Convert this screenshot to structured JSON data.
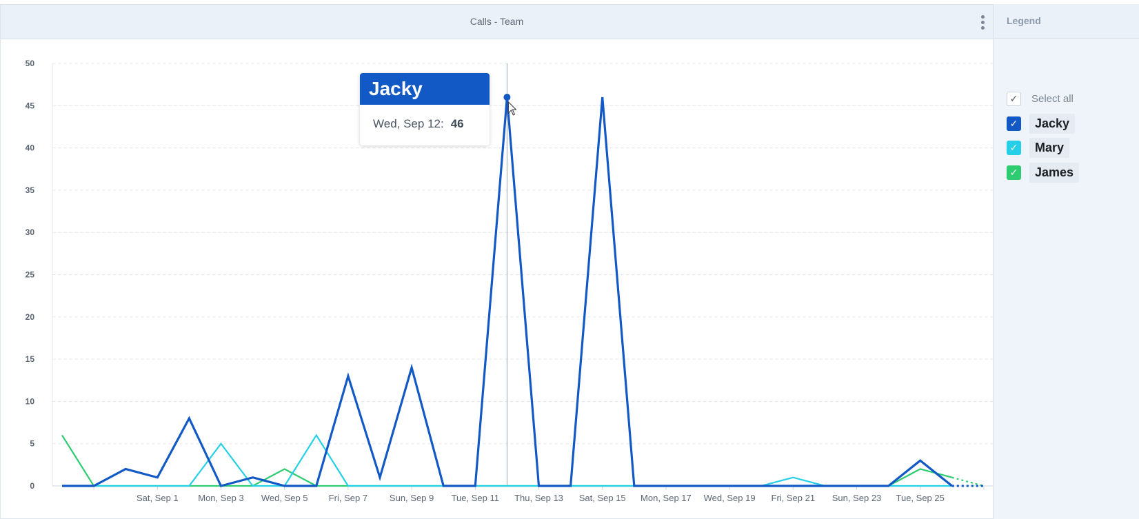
{
  "panel": {
    "title": "Calls - Team"
  },
  "legend": {
    "title": "Legend",
    "select_all": "Select all",
    "items": [
      {
        "name": "Jacky",
        "color": "#1259c5"
      },
      {
        "name": "Mary",
        "color": "#26cfe8"
      },
      {
        "name": "James",
        "color": "#2ecc71"
      }
    ]
  },
  "tooltip": {
    "series": "Jacky",
    "date": "Wed, Sep 12:",
    "value": "46"
  },
  "chart_data": {
    "type": "line",
    "title": "Calls - Team",
    "ylim": [
      0,
      50
    ],
    "yticks": [
      0,
      5,
      10,
      15,
      20,
      25,
      30,
      35,
      40,
      45,
      50
    ],
    "grid": true,
    "legend_position": "right",
    "x": [
      "Aug 29",
      "Aug 30",
      "Aug 31",
      "Sep 1",
      "Sep 2",
      "Sep 3",
      "Sep 4",
      "Sep 5",
      "Sep 6",
      "Sep 7",
      "Sep 8",
      "Sep 9",
      "Sep 10",
      "Sep 11",
      "Sep 12",
      "Sep 13",
      "Sep 14",
      "Sep 15",
      "Sep 16",
      "Sep 17",
      "Sep 18",
      "Sep 19",
      "Sep 20",
      "Sep 21",
      "Sep 22",
      "Sep 23",
      "Sep 24",
      "Sep 25",
      "Sep 26",
      "Sep 27"
    ],
    "xtick_labels": [
      {
        "date": "Sep 1",
        "label": "Sat, Sep 1"
      },
      {
        "date": "Sep 3",
        "label": "Mon, Sep 3"
      },
      {
        "date": "Sep 5",
        "label": "Wed, Sep 5"
      },
      {
        "date": "Sep 7",
        "label": "Fri, Sep 7"
      },
      {
        "date": "Sep 9",
        "label": "Sun, Sep 9"
      },
      {
        "date": "Sep 11",
        "label": "Tue, Sep 11"
      },
      {
        "date": "Sep 13",
        "label": "Thu, Sep 13"
      },
      {
        "date": "Sep 15",
        "label": "Sat, Sep 15"
      },
      {
        "date": "Sep 17",
        "label": "Mon, Sep 17"
      },
      {
        "date": "Sep 19",
        "label": "Wed, Sep 19"
      },
      {
        "date": "Sep 21",
        "label": "Fri, Sep 21"
      },
      {
        "date": "Sep 23",
        "label": "Sun, Sep 23"
      },
      {
        "date": "Sep 25",
        "label": "Tue, Sep 25"
      }
    ],
    "series": [
      {
        "name": "Jacky",
        "color": "#1259c5",
        "values": [
          0,
          0,
          2,
          1,
          8,
          0,
          1,
          0,
          0,
          13,
          1,
          14,
          0,
          0,
          46,
          0,
          0,
          46,
          0,
          0,
          0,
          0,
          0,
          0,
          0,
          0,
          0,
          3,
          0,
          0
        ]
      },
      {
        "name": "Mary",
        "color": "#26cfe8",
        "values": [
          0,
          0,
          0,
          0,
          0,
          5,
          0,
          0,
          6,
          0,
          0,
          0,
          0,
          0,
          0,
          0,
          0,
          0,
          0,
          0,
          0,
          0,
          0,
          1,
          0,
          0,
          0,
          0,
          0,
          0
        ]
      },
      {
        "name": "James",
        "color": "#2ecc71",
        "values": [
          6,
          0,
          0,
          0,
          0,
          0,
          0,
          2,
          0,
          0,
          0,
          0,
          0,
          0,
          0,
          0,
          0,
          0,
          0,
          0,
          0,
          0,
          0,
          0,
          0,
          0,
          0,
          2,
          1,
          0
        ]
      }
    ],
    "highlight": {
      "series": "Jacky",
      "date": "Sep 12",
      "value": 46
    }
  }
}
